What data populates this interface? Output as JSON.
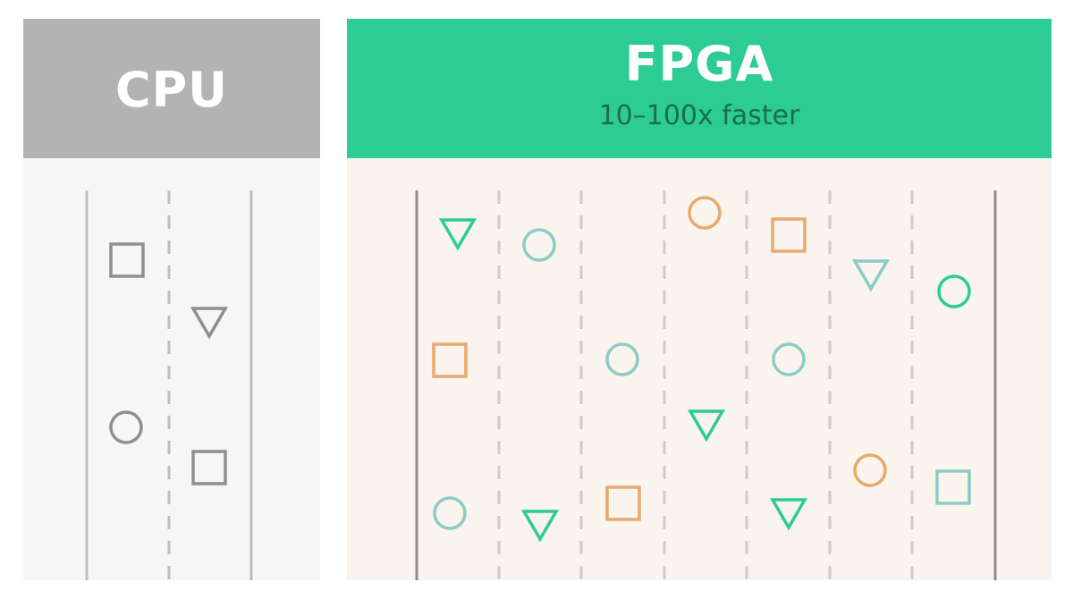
{
  "cpu": {
    "title": "CPU",
    "header_color": "#b3b3b3",
    "body_color": "#f6f6f6",
    "lane_color": "#bdbdbd",
    "shape_color": "#8f8f8f",
    "shapes": [
      {
        "kind": "square-icon"
      },
      {
        "kind": "triangle-icon"
      },
      {
        "kind": "circle-icon"
      },
      {
        "kind": "square-icon"
      }
    ]
  },
  "fpga": {
    "title": "FPGA",
    "subtitle": "10–100x faster",
    "header_color": "#2dcc95",
    "body_color": "#faf4ee",
    "lane_color": "#cfcac5",
    "colors": {
      "green": "#2dcc95",
      "teal": "#8ccbc6",
      "orange": "#e8aa6c"
    },
    "shapes": [
      {
        "kind": "triangle-icon",
        "color": "green"
      },
      {
        "kind": "circle-icon",
        "color": "teal"
      },
      {
        "kind": "circle-icon",
        "color": "orange"
      },
      {
        "kind": "square-icon",
        "color": "orange"
      },
      {
        "kind": "triangle-icon",
        "color": "teal"
      },
      {
        "kind": "circle-icon",
        "color": "green"
      },
      {
        "kind": "square-icon",
        "color": "orange"
      },
      {
        "kind": "circle-icon",
        "color": "teal"
      },
      {
        "kind": "circle-icon",
        "color": "teal"
      },
      {
        "kind": "triangle-icon",
        "color": "green"
      },
      {
        "kind": "circle-icon",
        "color": "orange"
      },
      {
        "kind": "square-icon",
        "color": "teal"
      },
      {
        "kind": "circle-icon",
        "color": "teal"
      },
      {
        "kind": "triangle-icon",
        "color": "green"
      },
      {
        "kind": "square-icon",
        "color": "orange"
      },
      {
        "kind": "triangle-icon",
        "color": "green"
      }
    ]
  }
}
